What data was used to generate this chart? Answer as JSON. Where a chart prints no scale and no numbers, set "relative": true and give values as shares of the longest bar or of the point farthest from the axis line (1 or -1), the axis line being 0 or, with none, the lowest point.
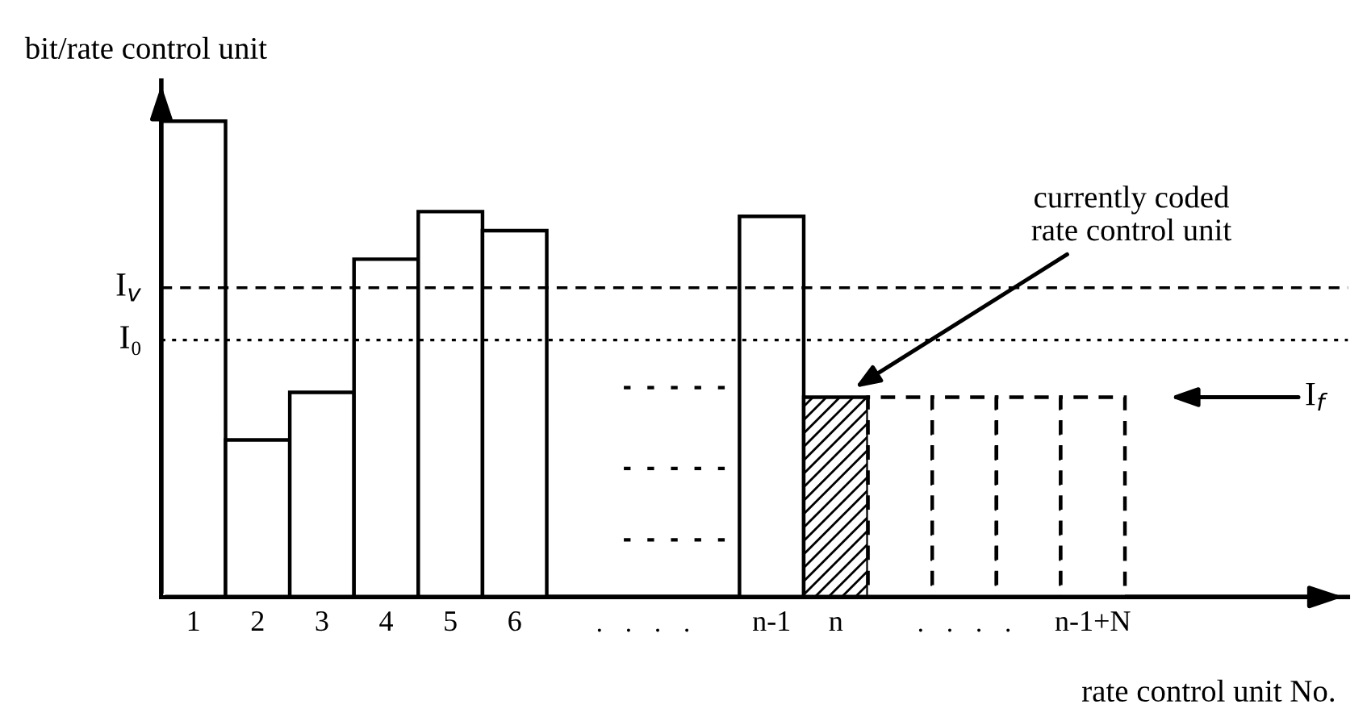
{
  "chart_data": {
    "type": "bar",
    "relative": true,
    "ylabel": "bit/rate control unit",
    "xlabel": "rate control unit No.",
    "categories": [
      "1",
      "2",
      "3",
      "4",
      "5",
      "6",
      null,
      null,
      null,
      "n-1",
      "n",
      null,
      null,
      null,
      "n-1+N"
    ],
    "series": [
      {
        "color": "#ffffff",
        "line_style": "solid",
        "values": [
          1,
          0.33,
          0.43,
          0.71,
          0.81,
          0.77,
          null,
          null,
          null,
          0.8,
          null,
          null,
          null,
          null,
          null
        ]
      },
      {
        "color": "#000000",
        "line_style": "solid",
        "values": [
          null,
          null,
          null,
          null,
          null,
          null,
          null,
          null,
          null,
          null,
          0.42,
          null,
          null,
          null,
          null
        ]
      },
      {
        "color": "#ffffff",
        "line_style": "dashed",
        "values": [
          null,
          null,
          null,
          null,
          null,
          null,
          null,
          null,
          null,
          null,
          null,
          0.42,
          0.42,
          0.42,
          0.42
        ]
      }
    ],
    "ref_lines": [
      {
        "axis": "y",
        "value": 0.65,
        "label": "I$_{v}$",
        "line_style": "dashed"
      },
      {
        "axis": "y",
        "value": 0.54,
        "label": "I₀",
        "line_style": "dotted"
      }
    ],
    "annotations": [
      "currently coded\nrate control unit",
      "I$_{f}$",
      "·   ·   ·   ·",
      "·   ·   ·   ·"
    ],
    "grid": false,
    "legend": false
  }
}
